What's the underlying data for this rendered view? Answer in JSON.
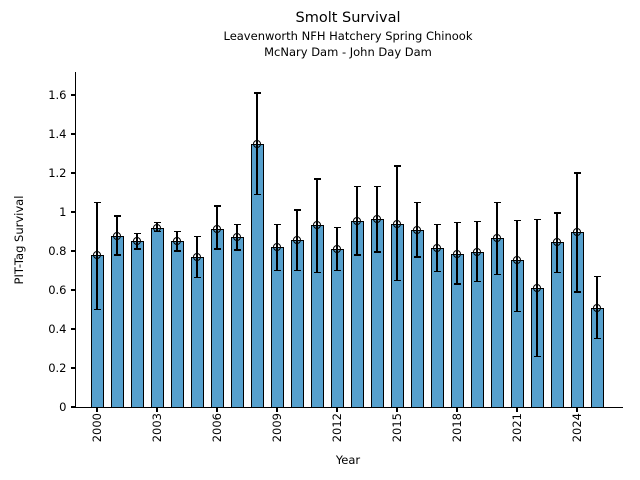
{
  "header": {
    "title": "Smolt Survival",
    "subtitle1": "Leavenworth NFH Hatchery Spring Chinook",
    "subtitle2": "McNary Dam - John Day Dam"
  },
  "chart_data": {
    "type": "bar",
    "title": "Smolt Survival",
    "subtitle1": "Leavenworth NFH Hatchery Spring Chinook",
    "subtitle2": "McNary Dam - John Day Dam",
    "xlabel": "Year",
    "ylabel": "PIT-Tag Survival",
    "ylim": [
      0,
      1.7
    ],
    "grid": false,
    "legend": "none",
    "bar_color": "#56A0CD",
    "edge_color": "#000000",
    "background_color": "#FFFFFF",
    "y_tick_labels": [
      "0",
      "0.2",
      "0.4",
      "0.6",
      "0.8",
      "1",
      "1.2",
      "1.4",
      "1.6"
    ],
    "y_tick_values": [
      0,
      0.2,
      0.4,
      0.6,
      0.8,
      1.0,
      1.2,
      1.4,
      1.6
    ],
    "x_tick_labels": [
      "2000",
      "2003",
      "2006",
      "2009",
      "2012",
      "2015",
      "2018",
      "2021",
      "2024"
    ],
    "x_tick_values": [
      2000,
      2003,
      2006,
      2009,
      2012,
      2015,
      2018,
      2021,
      2024
    ],
    "categories": [
      2000,
      2001,
      2002,
      2003,
      2004,
      2005,
      2006,
      2007,
      2008,
      2009,
      2010,
      2011,
      2012,
      2013,
      2014,
      2015,
      2016,
      2017,
      2018,
      2019,
      2020,
      2021,
      2022,
      2023,
      2024,
      2025
    ],
    "values": [
      0.78,
      0.875,
      0.85,
      0.92,
      0.85,
      0.77,
      0.915,
      0.87,
      1.35,
      0.82,
      0.855,
      0.935,
      0.81,
      0.955,
      0.965,
      0.94,
      0.91,
      0.815,
      0.785,
      0.795,
      0.865,
      0.755,
      0.61,
      0.845,
      0.9,
      0.51
    ],
    "err_low": [
      0.5,
      0.78,
      0.81,
      0.9,
      0.8,
      0.665,
      0.81,
      0.805,
      1.09,
      0.7,
      0.7,
      0.69,
      0.7,
      0.78,
      0.795,
      0.65,
      0.77,
      0.695,
      0.63,
      0.645,
      0.68,
      0.49,
      0.26,
      0.69,
      0.59,
      0.35
    ],
    "err_high": [
      1.05,
      0.98,
      0.89,
      0.945,
      0.9,
      0.875,
      1.03,
      0.935,
      1.61,
      0.935,
      1.01,
      1.17,
      0.92,
      1.13,
      1.13,
      1.235,
      1.05,
      0.935,
      0.945,
      0.95,
      1.05,
      0.955,
      0.96,
      0.995,
      1.2,
      0.67
    ]
  }
}
